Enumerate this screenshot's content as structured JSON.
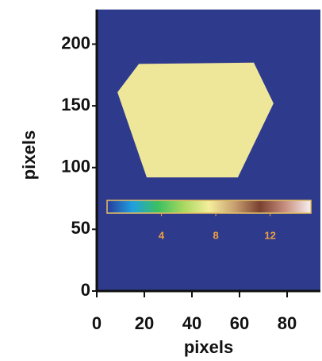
{
  "chart_data": {
    "type": "image",
    "x_label": "pixels",
    "y_label": "pixels",
    "xlim": [
      0,
      94
    ],
    "xticks": [
      0,
      20,
      40,
      60,
      80
    ],
    "ylim": [
      0,
      228
    ],
    "yticks": [
      0,
      50,
      100,
      150,
      200
    ],
    "background_color": "#2e3a8c",
    "regions": [
      {
        "x": [
          17.7,
          66,
          74.3,
          59.3,
          21,
          8.7
        ],
        "y": [
          184,
          185,
          152,
          92,
          92,
          161
        ],
        "value": 7,
        "color": "#eee79a"
      }
    ],
    "colorbar": {
      "lim": [
        0,
        15
      ],
      "ticks": [
        4,
        8,
        12
      ],
      "colormap": [
        "#2a3a9a",
        "#1fa0e0",
        "#3cc060",
        "#a8d860",
        "#f4ee9c",
        "#c8a070",
        "#7a4030",
        "#c89080",
        "#f8f0f0"
      ]
    }
  }
}
